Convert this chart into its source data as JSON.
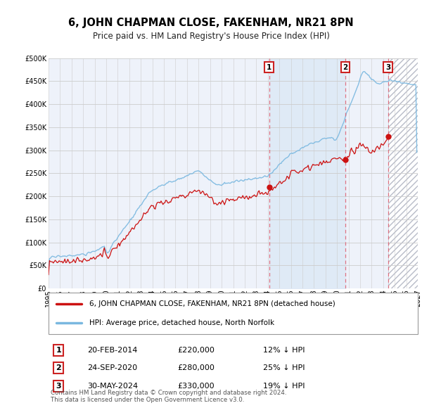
{
  "title": "6, JOHN CHAPMAN CLOSE, FAKENHAM, NR21 8PN",
  "subtitle": "Price paid vs. HM Land Registry's House Price Index (HPI)",
  "ylim": [
    0,
    500000
  ],
  "yticks": [
    0,
    50000,
    100000,
    150000,
    200000,
    250000,
    300000,
    350000,
    400000,
    450000,
    500000
  ],
  "xlim_start": 1995.0,
  "xlim_end": 2027.0,
  "hpi_color": "#7ab8e0",
  "price_color": "#cc1111",
  "vline_color": "#e06070",
  "grid_color": "#cccccc",
  "bg_color": "#eef2fa",
  "shade_between_color": "#dce8f5",
  "hatch_region_color": "#e8eaf0",
  "transactions": [
    {
      "label": "1",
      "year": 2014.12,
      "price": 220000,
      "date": "20-FEB-2014",
      "pct": "12%",
      "dir": "↓"
    },
    {
      "label": "2",
      "year": 2020.72,
      "price": 280000,
      "date": "24-SEP-2020",
      "pct": "25%",
      "dir": "↓"
    },
    {
      "label": "3",
      "year": 2024.41,
      "price": 330000,
      "date": "30-MAY-2024",
      "pct": "19%",
      "dir": "↓"
    }
  ],
  "legend_line1": "6, JOHN CHAPMAN CLOSE, FAKENHAM, NR21 8PN (detached house)",
  "legend_line2": "HPI: Average price, detached house, North Norfolk",
  "footer": "Contains HM Land Registry data © Crown copyright and database right 2024.\nThis data is licensed under the Open Government Licence v3.0.",
  "title_fontsize": 10.5,
  "subtitle_fontsize": 8.5,
  "tick_fontsize": 7,
  "shaded_start": 2024.41,
  "shaded_end": 2027.0,
  "blue_shade_start": 2014.12,
  "blue_shade_end": 2020.72
}
